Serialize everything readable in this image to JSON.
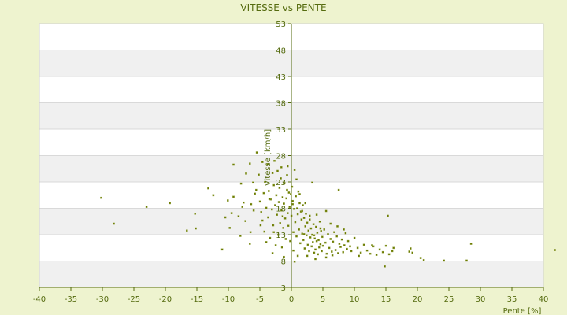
{
  "chart_data": {
    "type": "scatter",
    "title": "VITESSE vs PENTE",
    "xlabel": "Pente [%]",
    "ylabel": "Vitesse [km/h]",
    "xlim": [
      -40,
      40
    ],
    "ylim": [
      3,
      53
    ],
    "x_ticks": [
      "-40",
      "-35",
      "-30",
      "-25",
      "-20",
      "-15",
      "-10",
      "-5",
      "0",
      "5",
      "10",
      "15",
      "20",
      "25",
      "30",
      "35",
      "40"
    ],
    "y_ticks": [
      "53",
      "48",
      "43",
      "38",
      "33",
      "28",
      "23",
      "18",
      "13",
      "8",
      "3"
    ],
    "grid": "horizontal",
    "band_colors": [
      "#ffffff",
      "#f0f0f0"
    ],
    "marker_color": "#6b7a00",
    "points": [
      [
        -30.2,
        20.0
      ],
      [
        -28.2,
        15.1
      ],
      [
        -23.0,
        18.3
      ],
      [
        -19.3,
        19.0
      ],
      [
        -16.6,
        13.8
      ],
      [
        -15.2,
        14.2
      ],
      [
        -15.3,
        17.0
      ],
      [
        -13.2,
        21.8
      ],
      [
        -12.4,
        20.5
      ],
      [
        -11.0,
        10.2
      ],
      [
        -10.1,
        19.5
      ],
      [
        -9.8,
        14.3
      ],
      [
        -9.5,
        17.1
      ],
      [
        -9.2,
        26.3
      ],
      [
        -9.2,
        20.2
      ],
      [
        -8.4,
        16.5
      ],
      [
        -8.1,
        12.8
      ],
      [
        -7.6,
        19.1
      ],
      [
        -7.2,
        24.6
      ],
      [
        -7.3,
        15.6
      ],
      [
        -6.6,
        26.5
      ],
      [
        -6.6,
        11.3
      ],
      [
        -6.4,
        18.8
      ],
      [
        -6.1,
        22.9
      ],
      [
        -5.8,
        20.8
      ],
      [
        -5.6,
        21.5
      ],
      [
        -5.5,
        28.6
      ],
      [
        -5.2,
        24.4
      ],
      [
        -5.0,
        19.3
      ],
      [
        -4.8,
        17.3
      ],
      [
        -4.6,
        15.7
      ],
      [
        -4.6,
        26.8
      ],
      [
        -4.4,
        20.9
      ],
      [
        -4.3,
        13.6
      ],
      [
        -4.2,
        23.0
      ],
      [
        -4.0,
        18.1
      ],
      [
        -3.8,
        26.4
      ],
      [
        -3.7,
        16.3
      ],
      [
        -3.6,
        21.3
      ],
      [
        -3.4,
        12.4
      ],
      [
        -3.3,
        19.7
      ],
      [
        -3.1,
        17.8
      ],
      [
        -3.0,
        24.7
      ],
      [
        -2.9,
        14.8
      ],
      [
        -2.8,
        22.4
      ],
      [
        -2.6,
        18.6
      ],
      [
        -2.5,
        11.0
      ],
      [
        -2.4,
        20.5
      ],
      [
        -2.3,
        16.8
      ],
      [
        -2.2,
        25.1
      ],
      [
        -2.1,
        13.0
      ],
      [
        -2.0,
        19.2
      ],
      [
        -1.9,
        21.9
      ],
      [
        -1.8,
        15.2
      ],
      [
        -1.7,
        23.7
      ],
      [
        -1.6,
        17.6
      ],
      [
        -1.5,
        10.6
      ],
      [
        -1.4,
        20.1
      ],
      [
        -1.3,
        14.3
      ],
      [
        -1.2,
        18.9
      ],
      [
        -1.1,
        22.8
      ],
      [
        -1.0,
        16.1
      ],
      [
        -0.9,
        12.2
      ],
      [
        -0.8,
        19.9
      ],
      [
        -0.7,
        24.3
      ],
      [
        -0.6,
        17.1
      ],
      [
        -0.5,
        14.7
      ],
      [
        -0.4,
        21.0
      ],
      [
        -0.3,
        18.3
      ],
      [
        -0.2,
        11.8
      ],
      [
        -0.1,
        20.7
      ],
      [
        0.0,
        16.6
      ],
      [
        0.1,
        22.1
      ],
      [
        0.2,
        19.4
      ],
      [
        0.3,
        13.5
      ],
      [
        0.4,
        17.9
      ],
      [
        0.5,
        25.3
      ],
      [
        0.6,
        15.4
      ],
      [
        0.7,
        20.3
      ],
      [
        0.8,
        12.7
      ],
      [
        0.9,
        18.0
      ],
      [
        1.0,
        16.9
      ],
      [
        1.1,
        21.2
      ],
      [
        1.2,
        14.0
      ],
      [
        1.3,
        19.0
      ],
      [
        1.4,
        11.4
      ],
      [
        1.5,
        17.4
      ],
      [
        1.6,
        15.9
      ],
      [
        1.7,
        13.2
      ],
      [
        1.8,
        18.6
      ],
      [
        1.9,
        12.0
      ],
      [
        2.0,
        16.2
      ],
      [
        2.1,
        10.4
      ],
      [
        2.2,
        14.6
      ],
      [
        2.3,
        17.0
      ],
      [
        2.4,
        12.9
      ],
      [
        2.5,
        15.3
      ],
      [
        2.6,
        11.1
      ],
      [
        2.7,
        13.8
      ],
      [
        2.8,
        9.9
      ],
      [
        2.9,
        16.6
      ],
      [
        3.0,
        12.5
      ],
      [
        3.1,
        14.2
      ],
      [
        3.2,
        10.8
      ],
      [
        3.3,
        13.0
      ],
      [
        3.4,
        11.6
      ],
      [
        3.5,
        15.0
      ],
      [
        3.6,
        9.6
      ],
      [
        3.7,
        12.3
      ],
      [
        3.8,
        10.2
      ],
      [
        3.9,
        14.5
      ],
      [
        4.0,
        11.8
      ],
      [
        4.1,
        13.4
      ],
      [
        4.2,
        9.3
      ],
      [
        4.3,
        12.0
      ],
      [
        4.4,
        10.6
      ],
      [
        4.5,
        15.5
      ],
      [
        4.6,
        11.2
      ],
      [
        4.7,
        13.7
      ],
      [
        4.8,
        9.9
      ],
      [
        4.9,
        12.6
      ],
      [
        5.0,
        10.9
      ],
      [
        5.2,
        14.0
      ],
      [
        5.4,
        11.5
      ],
      [
        5.6,
        9.4
      ],
      [
        5.8,
        13.1
      ],
      [
        6.0,
        10.5
      ],
      [
        6.2,
        12.2
      ],
      [
        6.4,
        9.8
      ],
      [
        6.6,
        11.7
      ],
      [
        6.8,
        13.5
      ],
      [
        7.0,
        10.1
      ],
      [
        7.2,
        12.7
      ],
      [
        7.4,
        9.5
      ],
      [
        7.6,
        11.3
      ],
      [
        7.8,
        10.7
      ],
      [
        8.0,
        12.1
      ],
      [
        8.2,
        9.7
      ],
      [
        8.4,
        11.0
      ],
      [
        8.6,
        13.3
      ],
      [
        8.8,
        10.3
      ],
      [
        9.0,
        11.8
      ],
      [
        9.5,
        9.9
      ],
      [
        10.0,
        12.4
      ],
      [
        10.5,
        10.5
      ],
      [
        11.0,
        9.6
      ],
      [
        11.5,
        11.1
      ],
      [
        12.0,
        10.0
      ],
      [
        12.5,
        9.4
      ],
      [
        13.0,
        10.8
      ],
      [
        13.5,
        9.2
      ],
      [
        14.0,
        10.2
      ],
      [
        14.5,
        9.7
      ],
      [
        15.0,
        10.9
      ],
      [
        15.3,
        16.6
      ],
      [
        15.5,
        9.3
      ],
      [
        16.0,
        9.9
      ],
      [
        18.7,
        9.8
      ],
      [
        18.9,
        10.4
      ],
      [
        19.2,
        9.6
      ],
      [
        20.5,
        8.6
      ],
      [
        21.0,
        8.2
      ],
      [
        24.2,
        8.1
      ],
      [
        27.8,
        8.1
      ],
      [
        28.5,
        11.3
      ],
      [
        41.8,
        10.1
      ],
      [
        7.5,
        21.5
      ],
      [
        3.3,
        22.9
      ],
      [
        -0.6,
        26.0
      ],
      [
        0.8,
        23.5
      ],
      [
        2.2,
        19.0
      ],
      [
        4.0,
        16.8
      ],
      [
        5.5,
        17.5
      ],
      [
        7.3,
        14.6
      ],
      [
        1.0,
        9.0
      ],
      [
        -3.0,
        9.5
      ],
      [
        -1.2,
        8.8
      ],
      [
        0.3,
        10.0
      ],
      [
        2.5,
        9.0
      ],
      [
        5.5,
        8.7
      ],
      [
        6.5,
        9.1
      ],
      [
        -4.0,
        11.6
      ],
      [
        -6.5,
        13.5
      ],
      [
        -8.0,
        22.7
      ],
      [
        -10.5,
        16.3
      ],
      [
        -2.7,
        27.0
      ],
      [
        -1.6,
        25.8
      ],
      [
        0.5,
        7.9
      ],
      [
        3.8,
        8.4
      ],
      [
        10.7,
        9.0
      ],
      [
        14.8,
        7.0
      ],
      [
        16.2,
        10.5
      ],
      [
        12.8,
        11.0
      ],
      [
        9.3,
        10.8
      ],
      [
        8.3,
        14.0
      ],
      [
        6.2,
        15.1
      ],
      [
        4.6,
        14.2
      ],
      [
        2.9,
        15.9
      ],
      [
        1.7,
        17.5
      ],
      [
        0.2,
        18.8
      ],
      [
        -1.4,
        16.5
      ],
      [
        -2.8,
        13.5
      ],
      [
        -4.9,
        14.8
      ],
      [
        -6.0,
        17.6
      ],
      [
        -7.8,
        18.3
      ],
      [
        -3.5,
        19.8
      ],
      [
        -0.7,
        21.5
      ],
      [
        1.3,
        20.7
      ],
      [
        2.0,
        13.1
      ],
      [
        3.6,
        12.9
      ]
    ]
  }
}
